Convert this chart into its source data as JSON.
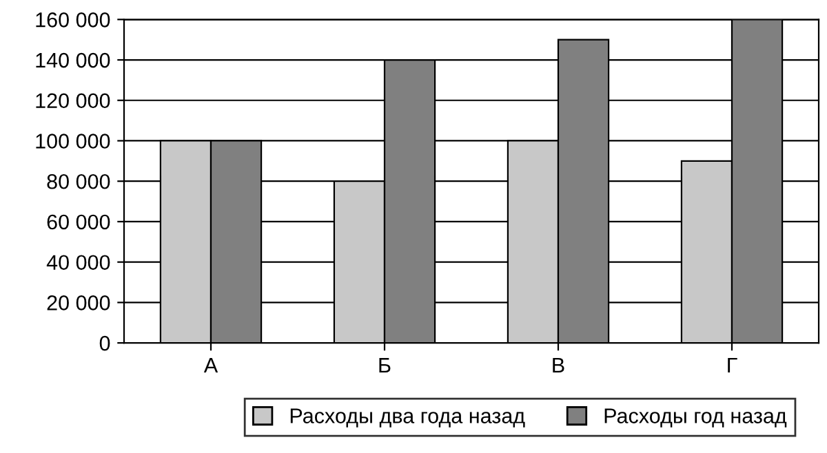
{
  "chart_data": {
    "type": "bar",
    "categories": [
      "А",
      "Б",
      "В",
      "Г"
    ],
    "series": [
      {
        "name": "Расходы два года назад",
        "color": "#c8c8c8",
        "values": [
          100000,
          80000,
          100000,
          90000
        ]
      },
      {
        "name": "Расходы год назад",
        "color": "#808080",
        "values": [
          100000,
          140000,
          150000,
          160000
        ]
      }
    ],
    "ylim": [
      0,
      160000
    ],
    "yticks": [
      0,
      {
        "value": 20000,
        "label": "20 000"
      },
      {
        "value": 40000,
        "label": "40 000"
      },
      {
        "value": 60000,
        "label": "60 000"
      },
      {
        "value": 80000,
        "label": "80 000"
      },
      {
        "value": 100000,
        "label": "100 000"
      },
      {
        "value": 120000,
        "label": "120 000"
      },
      {
        "value": 140000,
        "label": "140 000"
      },
      {
        "value": 160000,
        "label": "160 000"
      }
    ],
    "grid": "y",
    "legend": "bottom"
  }
}
